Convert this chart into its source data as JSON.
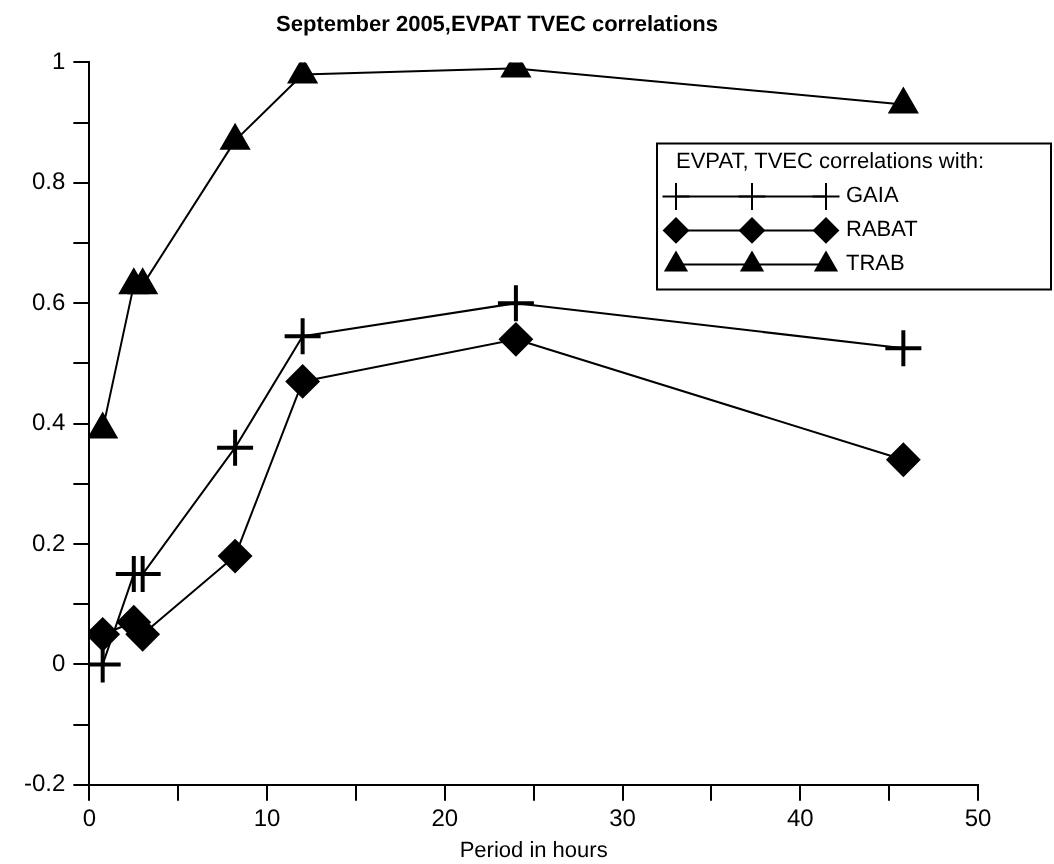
{
  "chart_data": {
    "type": "line",
    "title": "September 2005,EVPAT TVEC correlations",
    "xlabel": "Period in hours",
    "x": [
      0.75,
      2.5,
      3,
      8.2,
      12,
      24,
      45.8
    ],
    "series": [
      {
        "name": "GAIA",
        "color": "#000000",
        "marker": "cross",
        "values": [
          0,
          0.15,
          0.15,
          0.36,
          0.545,
          0.6,
          0.525
        ]
      },
      {
        "name": "RABAT",
        "color": "#000000",
        "marker": "diamond",
        "values": [
          0.05,
          0.07,
          0.05,
          0.18,
          0.47,
          0.54,
          0.34
        ]
      },
      {
        "name": "TRAB",
        "color": "#000000",
        "marker": "triangle",
        "values": [
          0.39,
          0.63,
          0.63,
          0.87,
          0.98,
          0.99,
          0.93
        ]
      }
    ],
    "legend": "top right",
    "legend_title": "EVPAT, TVEC correlations with:",
    "line_style": "solid",
    "grid": false,
    "xlim": [
      0,
      50
    ],
    "xticks": [
      0,
      {
        "value": 5,
        "label": null
      },
      10,
      {
        "value": 15,
        "label": null
      },
      20,
      {
        "value": 25,
        "label": null
      },
      30,
      {
        "value": 35,
        "label": null
      },
      40,
      {
        "value": 45,
        "label": null
      },
      50
    ],
    "ylim": [
      -0.2,
      1
    ],
    "yticks": [
      -0.2,
      {
        "value": -0.1,
        "label": null
      },
      0,
      {
        "value": 0.1,
        "label": null
      },
      0.2,
      {
        "value": 0.3,
        "label": null
      },
      0.4,
      {
        "value": 0.5,
        "label": null
      },
      0.6,
      {
        "value": 0.7,
        "label": null
      },
      0.8,
      {
        "value": 0.9,
        "label": null
      },
      1
    ]
  }
}
